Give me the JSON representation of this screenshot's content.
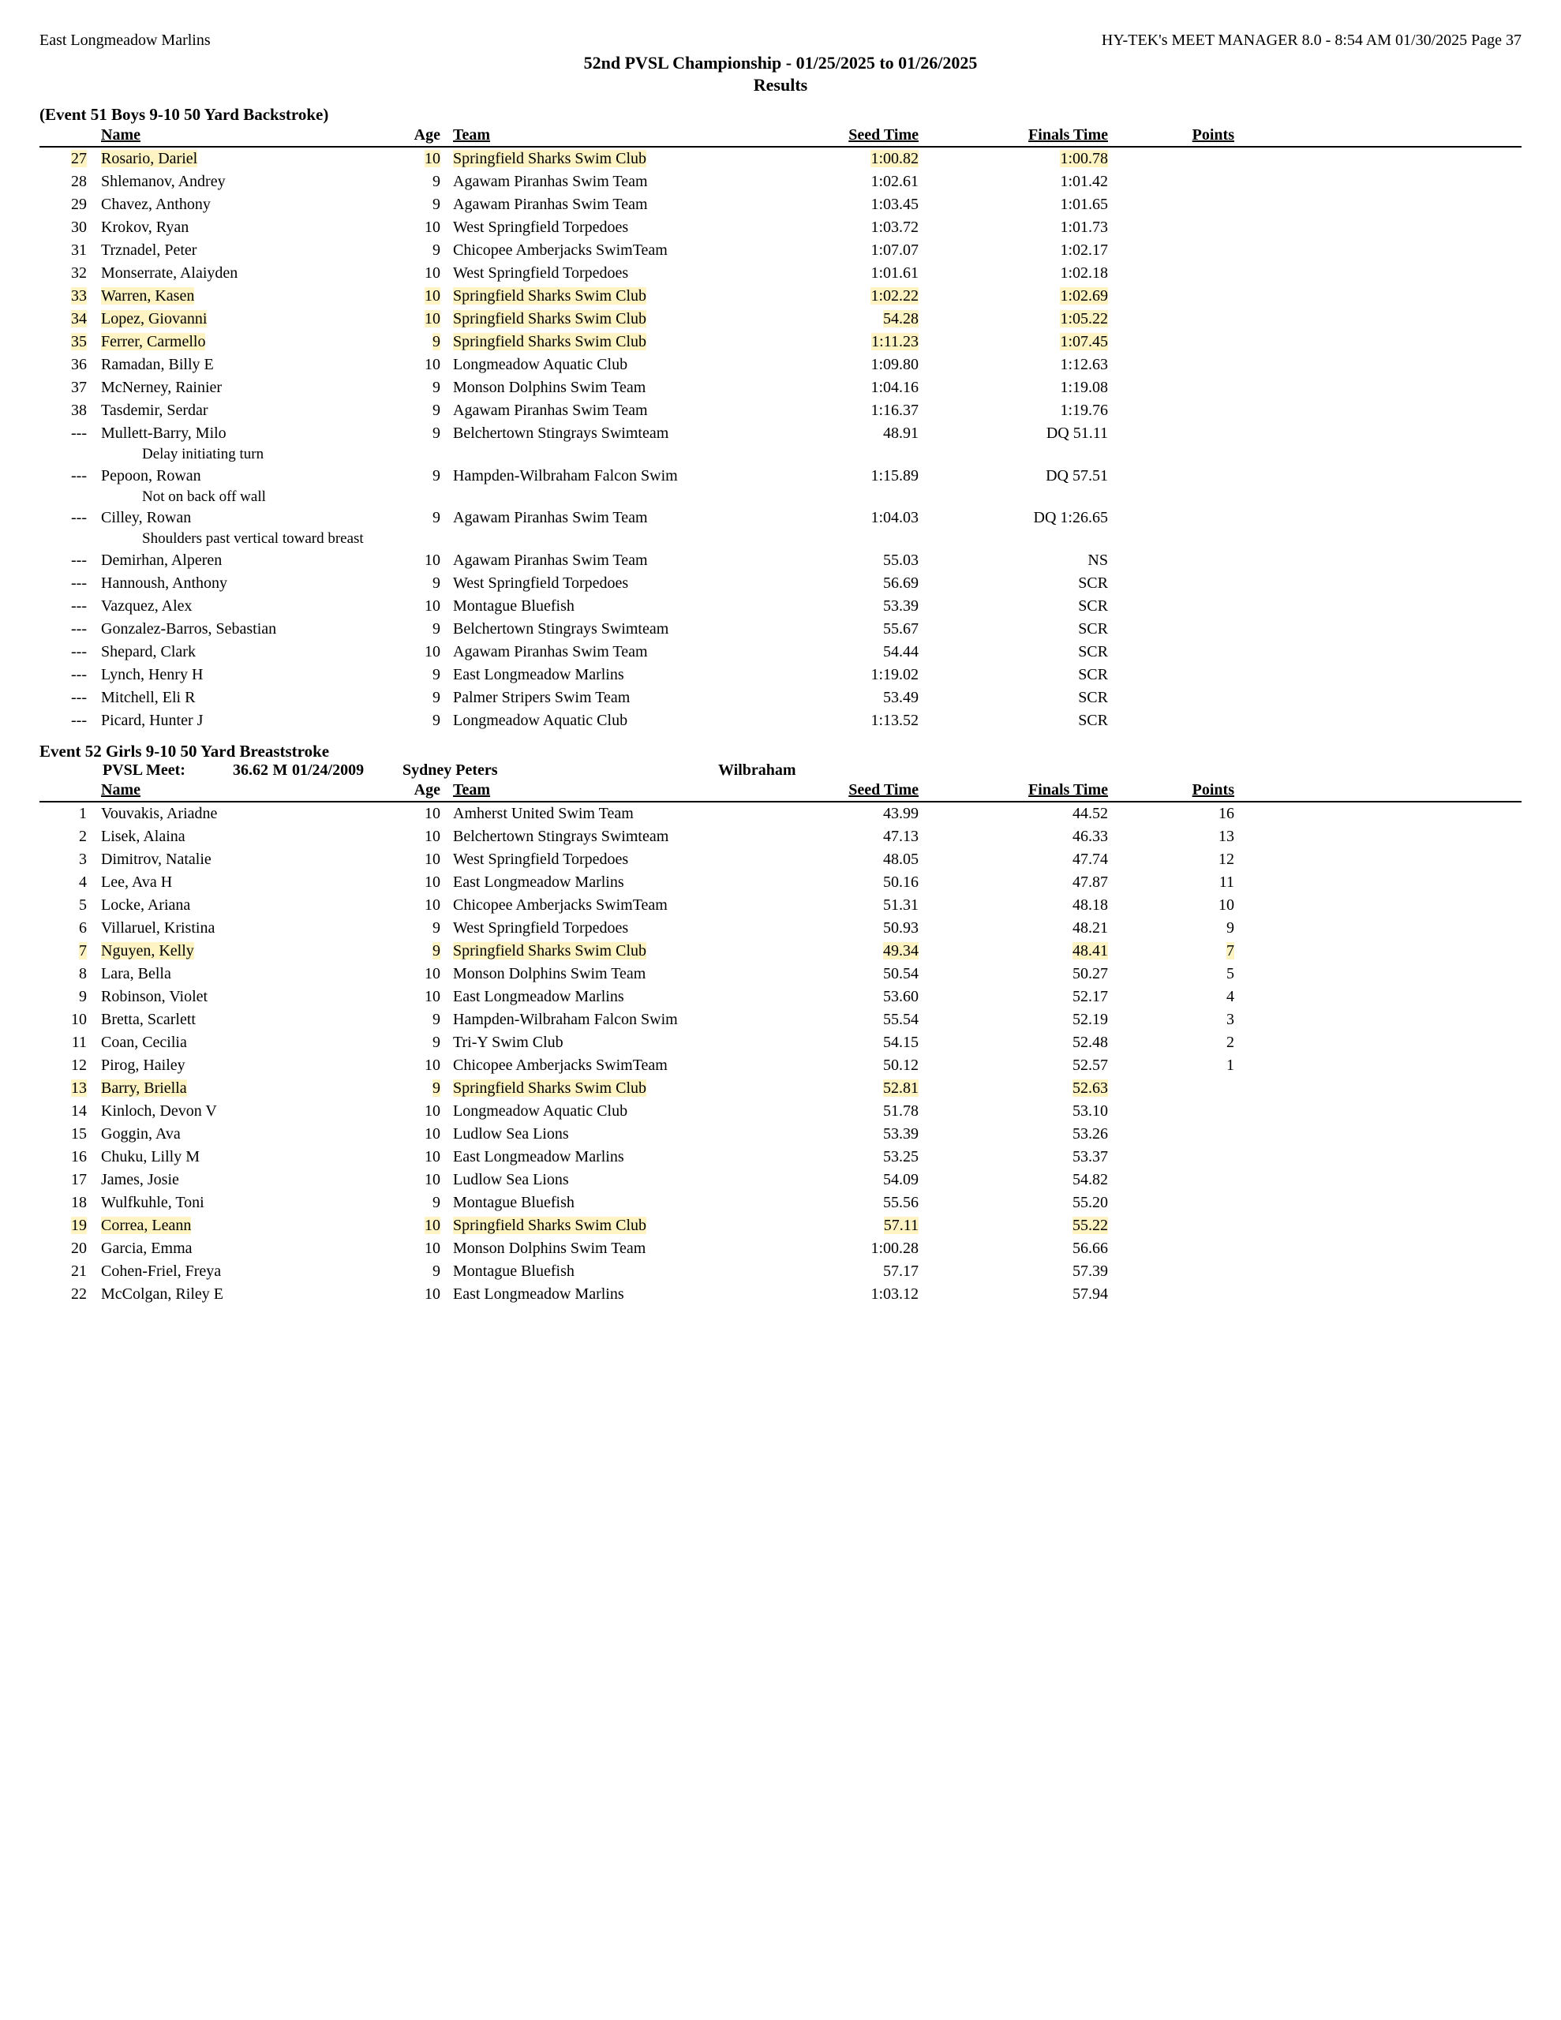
{
  "header": {
    "left": "East Longmeadow Marlins",
    "right": "HY-TEK's MEET MANAGER 8.0 - 8:54 AM  01/30/2025  Page 37",
    "title1": "52nd PVSL Championship - 01/25/2025 to 01/26/2025",
    "title2": "Results"
  },
  "columns": {
    "name": "Name",
    "age": "Age",
    "team": "Team",
    "seed": "Seed Time",
    "finals": "Finals Time",
    "points": "Points"
  },
  "highlight_color": "#fdf3c3",
  "events": [
    {
      "title": "(Event 51  Boys 9-10 50 Yard Backstroke)",
      "rows": [
        {
          "place": "27",
          "name": "Rosario, Dariel",
          "age": "10",
          "team": "Springfield Sharks Swim Club",
          "seed": "1:00.82",
          "finals": "1:00.78",
          "points": "",
          "hl": true
        },
        {
          "place": "28",
          "name": "Shlemanov, Andrey",
          "age": "9",
          "team": "Agawam Piranhas Swim Team",
          "seed": "1:02.61",
          "finals": "1:01.42",
          "points": ""
        },
        {
          "place": "29",
          "name": "Chavez, Anthony",
          "age": "9",
          "team": "Agawam Piranhas Swim Team",
          "seed": "1:03.45",
          "finals": "1:01.65",
          "points": ""
        },
        {
          "place": "30",
          "name": "Krokov, Ryan",
          "age": "10",
          "team": "West Springfield Torpedoes",
          "seed": "1:03.72",
          "finals": "1:01.73",
          "points": ""
        },
        {
          "place": "31",
          "name": "Trznadel, Peter",
          "age": "9",
          "team": "Chicopee Amberjacks SwimTeam",
          "seed": "1:07.07",
          "finals": "1:02.17",
          "points": ""
        },
        {
          "place": "32",
          "name": "Monserrate, Alaiyden",
          "age": "10",
          "team": "West Springfield Torpedoes",
          "seed": "1:01.61",
          "finals": "1:02.18",
          "points": ""
        },
        {
          "place": "33",
          "name": "Warren, Kasen",
          "age": "10",
          "team": "Springfield Sharks Swim Club",
          "seed": "1:02.22",
          "finals": "1:02.69",
          "points": "",
          "hl": true
        },
        {
          "place": "34",
          "name": "Lopez, Giovanni",
          "age": "10",
          "team": "Springfield Sharks Swim Club",
          "seed": "54.28",
          "finals": "1:05.22",
          "points": "",
          "hl": true
        },
        {
          "place": "35",
          "name": "Ferrer, Carmello",
          "age": "9",
          "team": "Springfield Sharks Swim Club",
          "seed": "1:11.23",
          "finals": "1:07.45",
          "points": "",
          "hl": true
        },
        {
          "place": "36",
          "name": "Ramadan, Billy E",
          "age": "10",
          "team": "Longmeadow Aquatic Club",
          "seed": "1:09.80",
          "finals": "1:12.63",
          "points": ""
        },
        {
          "place": "37",
          "name": "McNerney, Rainier",
          "age": "9",
          "team": "Monson Dolphins Swim Team",
          "seed": "1:04.16",
          "finals": "1:19.08",
          "points": ""
        },
        {
          "place": "38",
          "name": "Tasdemir, Serdar",
          "age": "9",
          "team": "Agawam Piranhas Swim Team",
          "seed": "1:16.37",
          "finals": "1:19.76",
          "points": ""
        },
        {
          "place": "---",
          "name": "Mullett-Barry, Milo",
          "age": "9",
          "team": "Belchertown Stingrays Swimteam",
          "seed": "48.91",
          "finals": "DQ 51.11",
          "points": "",
          "note": "Delay initiating turn"
        },
        {
          "place": "---",
          "name": "Pepoon, Rowan",
          "age": "9",
          "team": "Hampden-Wilbraham Falcon Swim",
          "seed": "1:15.89",
          "finals": "DQ 57.51",
          "points": "",
          "note": "Not on back off wall"
        },
        {
          "place": "---",
          "name": "Cilley, Rowan",
          "age": "9",
          "team": "Agawam Piranhas Swim Team",
          "seed": "1:04.03",
          "finals": "DQ 1:26.65",
          "points": "",
          "note": "Shoulders past vertical toward breast"
        },
        {
          "place": "---",
          "name": "Demirhan, Alperen",
          "age": "10",
          "team": "Agawam Piranhas Swim Team",
          "seed": "55.03",
          "finals": "NS",
          "points": ""
        },
        {
          "place": "---",
          "name": "Hannoush, Anthony",
          "age": "9",
          "team": "West Springfield Torpedoes",
          "seed": "56.69",
          "finals": "SCR",
          "points": ""
        },
        {
          "place": "---",
          "name": "Vazquez, Alex",
          "age": "10",
          "team": "Montague Bluefish",
          "seed": "53.39",
          "finals": "SCR",
          "points": ""
        },
        {
          "place": "---",
          "name": "Gonzalez-Barros, Sebastian",
          "age": "9",
          "team": "Belchertown Stingrays Swimteam",
          "seed": "55.67",
          "finals": "SCR",
          "points": ""
        },
        {
          "place": "---",
          "name": "Shepard, Clark",
          "age": "10",
          "team": "Agawam Piranhas Swim Team",
          "seed": "54.44",
          "finals": "SCR",
          "points": ""
        },
        {
          "place": "---",
          "name": "Lynch, Henry H",
          "age": "9",
          "team": "East Longmeadow Marlins",
          "seed": "1:19.02",
          "finals": "SCR",
          "points": ""
        },
        {
          "place": "---",
          "name": "Mitchell, Eli R",
          "age": "9",
          "team": "Palmer Stripers Swim Team",
          "seed": "53.49",
          "finals": "SCR",
          "points": ""
        },
        {
          "place": "---",
          "name": "Picard, Hunter J",
          "age": "9",
          "team": "Longmeadow Aquatic Club",
          "seed": "1:13.52",
          "finals": "SCR",
          "points": ""
        }
      ]
    },
    {
      "title": "Event 52  Girls 9-10 50 Yard Breaststroke",
      "record": {
        "label": "PVSL Meet:",
        "time": "36.62",
        "flag": "M",
        "date": "01/24/2009",
        "name": "Sydney Peters",
        "team": "Wilbraham"
      },
      "rows": [
        {
          "place": "1",
          "name": "Vouvakis, Ariadne",
          "age": "10",
          "team": "Amherst United Swim Team",
          "seed": "43.99",
          "finals": "44.52",
          "points": "16"
        },
        {
          "place": "2",
          "name": "Lisek, Alaina",
          "age": "10",
          "team": "Belchertown Stingrays Swimteam",
          "seed": "47.13",
          "finals": "46.33",
          "points": "13"
        },
        {
          "place": "3",
          "name": "Dimitrov, Natalie",
          "age": "10",
          "team": "West Springfield Torpedoes",
          "seed": "48.05",
          "finals": "47.74",
          "points": "12"
        },
        {
          "place": "4",
          "name": "Lee, Ava H",
          "age": "10",
          "team": "East Longmeadow Marlins",
          "seed": "50.16",
          "finals": "47.87",
          "points": "11"
        },
        {
          "place": "5",
          "name": "Locke, Ariana",
          "age": "10",
          "team": "Chicopee Amberjacks SwimTeam",
          "seed": "51.31",
          "finals": "48.18",
          "points": "10"
        },
        {
          "place": "6",
          "name": "Villaruel, Kristina",
          "age": "9",
          "team": "West Springfield Torpedoes",
          "seed": "50.93",
          "finals": "48.21",
          "points": "9"
        },
        {
          "place": "7",
          "name": "Nguyen, Kelly",
          "age": "9",
          "team": "Springfield Sharks Swim Club",
          "seed": "49.34",
          "finals": "48.41",
          "points": "7",
          "hl": true
        },
        {
          "place": "8",
          "name": "Lara, Bella",
          "age": "10",
          "team": "Monson Dolphins Swim Team",
          "seed": "50.54",
          "finals": "50.27",
          "points": "5"
        },
        {
          "place": "9",
          "name": "Robinson, Violet",
          "age": "10",
          "team": "East Longmeadow Marlins",
          "seed": "53.60",
          "finals": "52.17",
          "points": "4"
        },
        {
          "place": "10",
          "name": "Bretta, Scarlett",
          "age": "9",
          "team": "Hampden-Wilbraham Falcon Swim",
          "seed": "55.54",
          "finals": "52.19",
          "points": "3"
        },
        {
          "place": "11",
          "name": "Coan, Cecilia",
          "age": "9",
          "team": "Tri-Y Swim Club",
          "seed": "54.15",
          "finals": "52.48",
          "points": "2"
        },
        {
          "place": "12",
          "name": "Pirog, Hailey",
          "age": "10",
          "team": "Chicopee Amberjacks SwimTeam",
          "seed": "50.12",
          "finals": "52.57",
          "points": "1"
        },
        {
          "place": "13",
          "name": "Barry, Briella",
          "age": "9",
          "team": "Springfield Sharks Swim Club",
          "seed": "52.81",
          "finals": "52.63",
          "points": "",
          "hl": true
        },
        {
          "place": "14",
          "name": "Kinloch, Devon V",
          "age": "10",
          "team": "Longmeadow Aquatic Club",
          "seed": "51.78",
          "finals": "53.10",
          "points": ""
        },
        {
          "place": "15",
          "name": "Goggin, Ava",
          "age": "10",
          "team": "Ludlow Sea Lions",
          "seed": "53.39",
          "finals": "53.26",
          "points": ""
        },
        {
          "place": "16",
          "name": "Chuku, Lilly M",
          "age": "10",
          "team": "East Longmeadow Marlins",
          "seed": "53.25",
          "finals": "53.37",
          "points": ""
        },
        {
          "place": "17",
          "name": "James, Josie",
          "age": "10",
          "team": "Ludlow Sea Lions",
          "seed": "54.09",
          "finals": "54.82",
          "points": ""
        },
        {
          "place": "18",
          "name": "Wulfkuhle, Toni",
          "age": "9",
          "team": "Montague Bluefish",
          "seed": "55.56",
          "finals": "55.20",
          "points": ""
        },
        {
          "place": "19",
          "name": "Correa, Leann",
          "age": "10",
          "team": "Springfield Sharks Swim Club",
          "seed": "57.11",
          "finals": "55.22",
          "points": "",
          "hl": true
        },
        {
          "place": "20",
          "name": "Garcia, Emma",
          "age": "10",
          "team": "Monson Dolphins Swim Team",
          "seed": "1:00.28",
          "finals": "56.66",
          "points": ""
        },
        {
          "place": "21",
          "name": "Cohen-Friel, Freya",
          "age": "9",
          "team": "Montague Bluefish",
          "seed": "57.17",
          "finals": "57.39",
          "points": ""
        },
        {
          "place": "22",
          "name": "McColgan, Riley E",
          "age": "10",
          "team": "East Longmeadow Marlins",
          "seed": "1:03.12",
          "finals": "57.94",
          "points": ""
        }
      ]
    }
  ]
}
